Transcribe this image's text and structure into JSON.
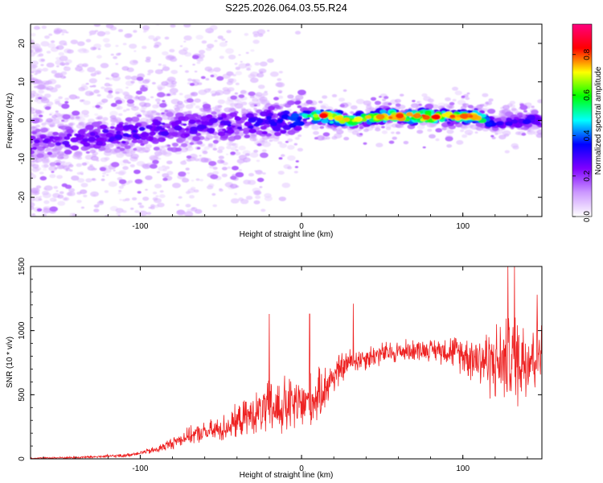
{
  "figure_title": "S225.2026.064.03.55.R24",
  "colors": {
    "snr_line": "#ee2222",
    "colormap": [
      "#ffffff",
      "#cc99ff",
      "#7f00ff",
      "#0000ff",
      "#00ffff",
      "#00ff00",
      "#ffff00",
      "#ff0000",
      "#ff007f"
    ]
  },
  "chart_data": [
    {
      "type": "heatmap",
      "xlabel": "Height of straight line (km)",
      "ylabel": "Frequency (Hz)",
      "xlim": [
        -168,
        149
      ],
      "ylim": [
        -25,
        25
      ],
      "xticks": [
        -100,
        0,
        100
      ],
      "yticks": [
        -20,
        -10,
        0,
        10,
        20
      ],
      "colorbar": {
        "label": "Normalized spectral amplitude",
        "range": [
          0,
          0.95
        ],
        "ticks": [
          "0.0",
          "0.2",
          "0.4",
          "0.6",
          "0.8"
        ]
      },
      "description_data": {
        "ridge": [
          {
            "x": -160,
            "f": -6,
            "amp": 0.25
          },
          {
            "x": -120,
            "f": -4,
            "amp": 0.3
          },
          {
            "x": -80,
            "f": -2,
            "amp": 0.3
          },
          {
            "x": -40,
            "f": -1,
            "amp": 0.3
          },
          {
            "x": -10,
            "f": 0,
            "amp": 0.35
          },
          {
            "x": 0,
            "f": 1,
            "amp": 0.45
          },
          {
            "x": 15,
            "f": 1,
            "amp": 0.85
          },
          {
            "x": 30,
            "f": 0,
            "amp": 0.7
          },
          {
            "x": 50,
            "f": 1,
            "amp": 0.75
          },
          {
            "x": 70,
            "f": 1,
            "amp": 0.85
          },
          {
            "x": 90,
            "f": 1,
            "amp": 0.8
          },
          {
            "x": 110,
            "f": 1,
            "amp": 0.75
          },
          {
            "x": 120,
            "f": -1,
            "amp": 0.3
          },
          {
            "x": 140,
            "f": 0,
            "amp": 0.35
          }
        ]
      }
    },
    {
      "type": "line",
      "xlabel": "Height of straight line (km)",
      "ylabel": "SNR (10 * v/v)",
      "xlim": [
        -168,
        149
      ],
      "ylim": [
        0,
        1500
      ],
      "xticks": [
        -100,
        0,
        100
      ],
      "yticks": [
        0,
        500,
        1000,
        1500
      ],
      "trend": [
        {
          "x": -168,
          "y": 5
        },
        {
          "x": -140,
          "y": 10
        },
        {
          "x": -110,
          "y": 25
        },
        {
          "x": -90,
          "y": 70
        },
        {
          "x": -70,
          "y": 180
        },
        {
          "x": -50,
          "y": 230
        },
        {
          "x": -35,
          "y": 320
        },
        {
          "x": -20,
          "y": 390
        },
        {
          "x": 0,
          "y": 420
        },
        {
          "x": 10,
          "y": 480
        },
        {
          "x": 20,
          "y": 650
        },
        {
          "x": 30,
          "y": 760
        },
        {
          "x": 50,
          "y": 820
        },
        {
          "x": 70,
          "y": 850
        },
        {
          "x": 90,
          "y": 850
        },
        {
          "x": 105,
          "y": 800
        },
        {
          "x": 120,
          "y": 750
        },
        {
          "x": 140,
          "y": 800
        },
        {
          "x": 149,
          "y": 850
        }
      ],
      "noise_amplitude": [
        {
          "x": -168,
          "y": 5
        },
        {
          "x": -100,
          "y": 15
        },
        {
          "x": -60,
          "y": 80
        },
        {
          "x": -30,
          "y": 150
        },
        {
          "x": -15,
          "y": 250
        },
        {
          "x": 10,
          "y": 200
        },
        {
          "x": 30,
          "y": 100
        },
        {
          "x": 80,
          "y": 80
        },
        {
          "x": 100,
          "y": 150
        },
        {
          "x": 120,
          "y": 300
        },
        {
          "x": 135,
          "y": 380
        },
        {
          "x": 149,
          "y": 300
        }
      ],
      "peaks": [
        {
          "x": -20,
          "y": 1130
        },
        {
          "x": 5,
          "y": 1130
        },
        {
          "x": 32,
          "y": 1210
        },
        {
          "x": 128,
          "y": 1500
        },
        {
          "x": 132,
          "y": 1500
        },
        {
          "x": 146,
          "y": 1280
        }
      ]
    }
  ]
}
